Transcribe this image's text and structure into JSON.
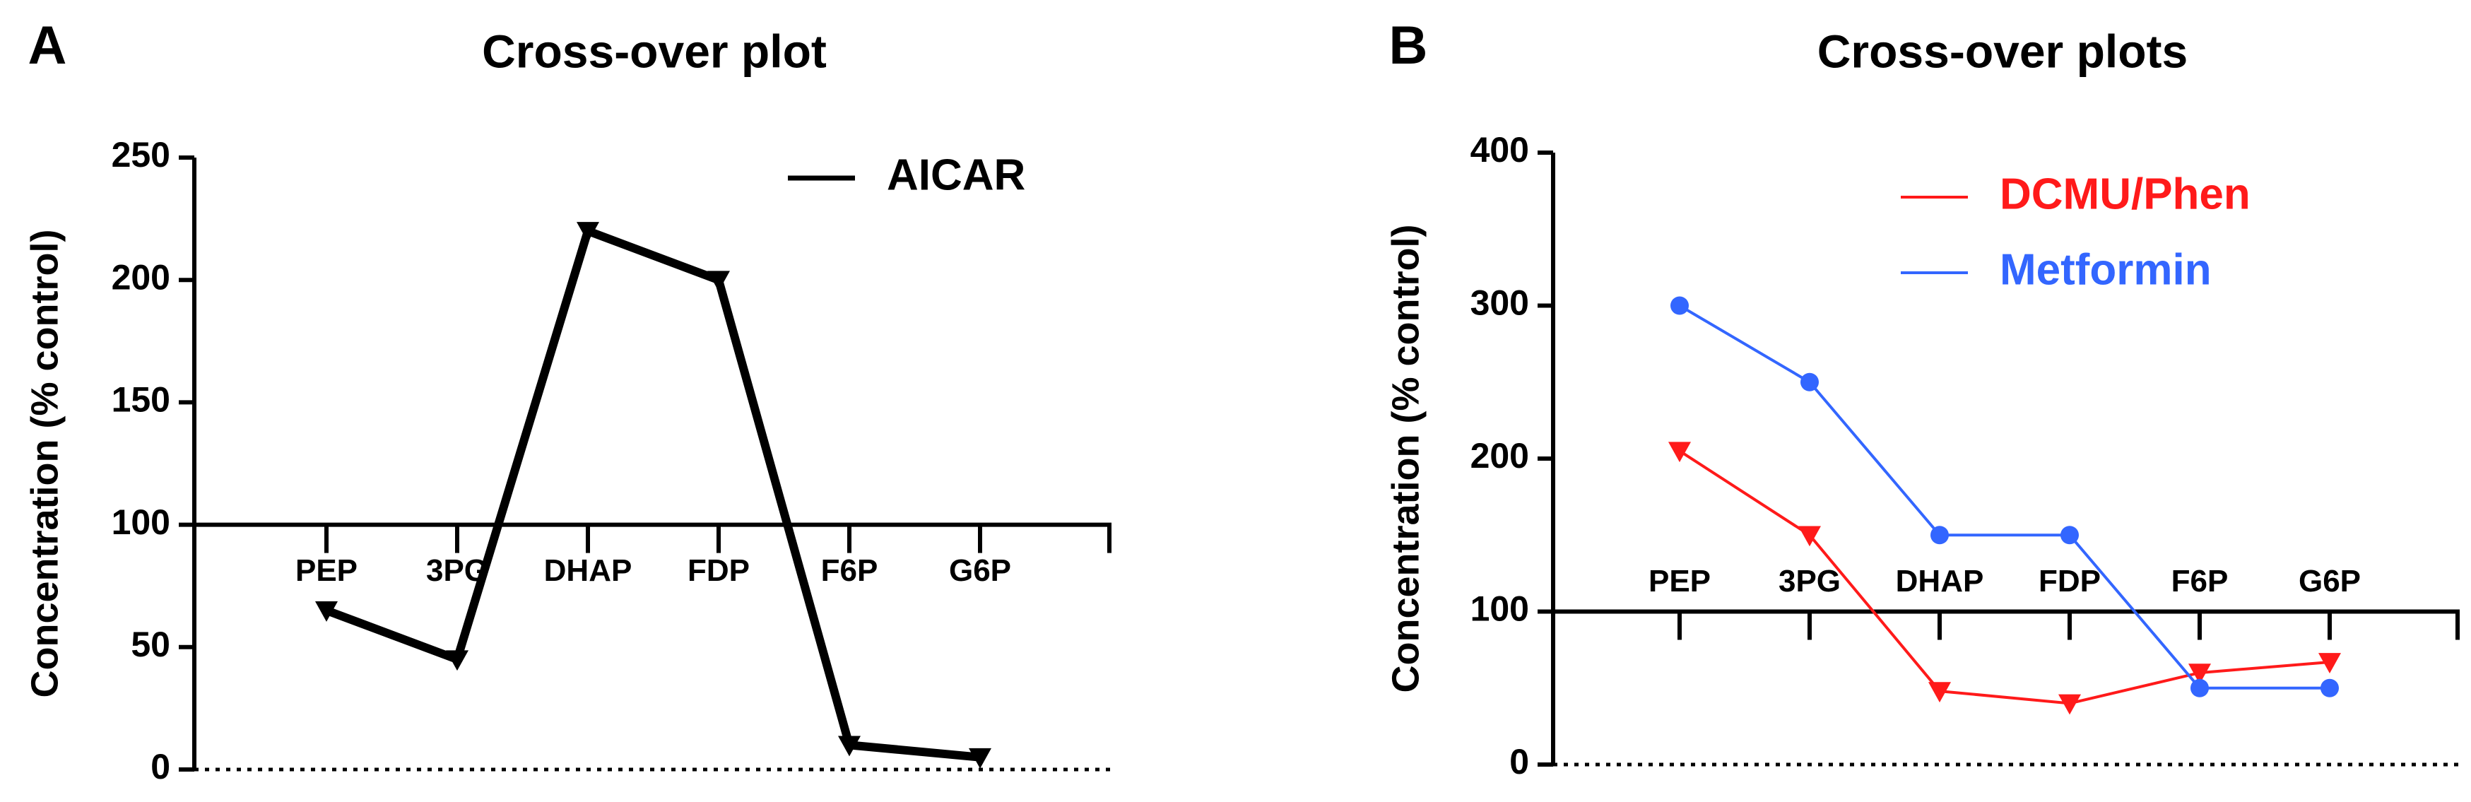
{
  "chart_data": [
    {
      "type": "line",
      "panel_label": "A",
      "title": "Cross-over plot",
      "y_label": "Concentration (% control)",
      "categories": [
        "PEP",
        "3PG",
        "DHAP",
        "FDP",
        "F6P",
        "G6P"
      ],
      "series": [
        {
          "name": "AICAR",
          "color": "#000000",
          "marker": "triangle-down",
          "values": [
            65,
            45,
            220,
            200,
            10,
            5
          ]
        }
      ],
      "ylim": [
        0,
        250
      ],
      "yticks": [
        0,
        50,
        100,
        150,
        200,
        250
      ],
      "x_axis_at": 100,
      "category_labels": "below",
      "legend_text_colored": false
    },
    {
      "type": "line",
      "panel_label": "B",
      "title": "Cross-over plots",
      "y_label": "Concentration (% control)",
      "categories": [
        "PEP",
        "3PG",
        "DHAP",
        "FDP",
        "F6P",
        "G6P"
      ],
      "series": [
        {
          "name": "DCMU/Phen",
          "color": "#ff1a1a",
          "marker": "triangle-down",
          "values": [
            205,
            150,
            48,
            40,
            60,
            67
          ]
        },
        {
          "name": "Metformin",
          "color": "#3366ff",
          "marker": "circle",
          "values": [
            300,
            250,
            150,
            150,
            50,
            50
          ]
        }
      ],
      "ylim": [
        0,
        400
      ],
      "yticks": [
        0,
        100,
        200,
        300,
        400
      ],
      "x_axis_at": 100,
      "category_labels": "above",
      "legend_text_colored": true
    }
  ]
}
